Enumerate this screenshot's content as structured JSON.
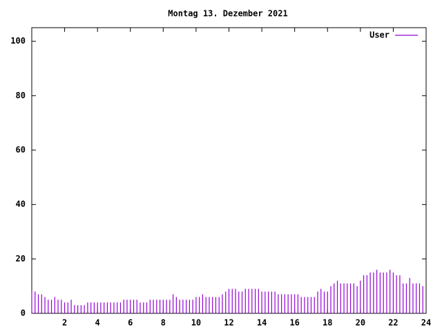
{
  "chart_data": {
    "type": "impulse",
    "title": "Montag 13. Dezember 2021",
    "x": [
      0,
      0.2,
      0.4,
      0.6,
      0.8,
      1,
      1.2,
      1.4,
      1.6,
      1.8,
      2,
      2.2,
      2.4,
      2.6,
      2.8,
      3,
      3.2,
      3.4,
      3.6,
      3.8,
      4,
      4.2,
      4.4,
      4.6,
      4.8,
      5,
      5.2,
      5.4,
      5.6,
      5.8,
      6,
      6.2,
      6.4,
      6.6,
      6.8,
      7,
      7.2,
      7.4,
      7.6,
      7.8,
      8,
      8.2,
      8.4,
      8.6,
      8.8,
      9,
      9.2,
      9.4,
      9.6,
      9.8,
      10,
      10.2,
      10.4,
      10.6,
      10.8,
      11,
      11.2,
      11.4,
      11.6,
      11.8,
      12,
      12.2,
      12.4,
      12.6,
      12.8,
      13,
      13.2,
      13.4,
      13.6,
      13.8,
      14,
      14.2,
      14.4,
      14.6,
      14.8,
      15,
      15.2,
      15.4,
      15.6,
      15.8,
      16,
      16.2,
      16.4,
      16.6,
      16.8,
      17,
      17.2,
      17.4,
      17.6,
      17.8,
      18,
      18.2,
      18.4,
      18.6,
      18.8,
      19,
      19.2,
      19.4,
      19.6,
      19.8,
      20,
      20.2,
      20.4,
      20.6,
      20.8,
      21,
      21.2,
      21.4,
      21.6,
      21.8,
      22,
      22.2,
      22.4,
      22.6,
      22.8,
      23,
      23.2,
      23.4,
      23.6,
      23.8
    ],
    "series": [
      {
        "name": "User",
        "color": "#9400d3",
        "values": [
          8,
          8,
          7,
          7,
          6,
          5,
          5,
          6,
          5,
          5,
          4,
          4,
          5,
          3,
          3,
          3,
          3,
          4,
          4,
          4,
          4,
          4,
          4,
          4,
          4,
          4,
          4,
          4,
          5,
          5,
          5,
          5,
          5,
          4,
          4,
          4,
          5,
          5,
          5,
          5,
          5,
          5,
          5,
          7,
          6,
          5,
          5,
          5,
          5,
          5,
          6,
          6,
          7,
          6,
          6,
          6,
          6,
          6,
          7,
          8,
          9,
          9,
          9,
          8,
          8,
          9,
          9,
          9,
          9,
          9,
          8,
          8,
          8,
          8,
          8,
          7,
          7,
          7,
          7,
          7,
          7,
          7,
          6,
          6,
          6,
          6,
          6,
          8,
          9,
          8,
          8,
          10,
          11,
          12,
          11,
          11,
          11,
          11,
          11,
          10,
          12,
          14,
          14,
          15,
          15,
          16,
          15,
          15,
          15,
          16,
          15,
          14,
          14,
          11,
          11,
          13,
          11,
          11,
          11,
          10
        ]
      }
    ],
    "xlim": [
      0,
      24
    ],
    "xticks": [
      2,
      4,
      6,
      8,
      10,
      12,
      14,
      16,
      18,
      20,
      22,
      24
    ],
    "ylim": [
      0,
      105
    ],
    "yticks": [
      0,
      20,
      40,
      60,
      80,
      100
    ],
    "legend": "top-right",
    "grid": false
  }
}
